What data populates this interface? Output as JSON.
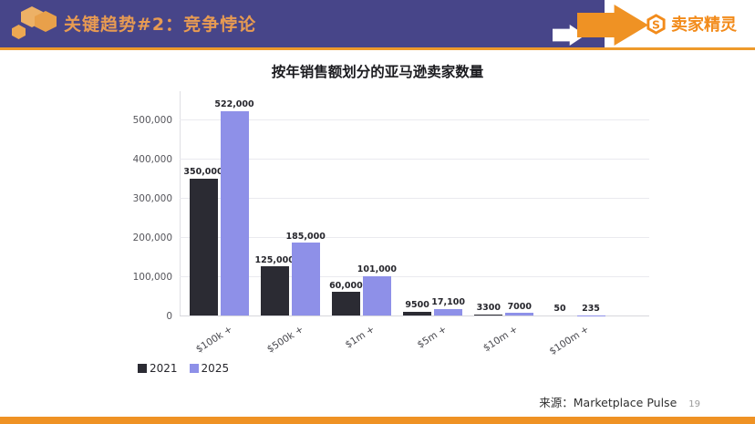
{
  "header": {
    "title": "关键趋势#2：竞争悖论",
    "brand": "卖家精灵",
    "colors": {
      "bar_background": "#474589",
      "accent_orange": "#EE9A2B",
      "title_text": "#E89B52",
      "brand_orange": "#F28B1B"
    }
  },
  "chart_data": {
    "type": "bar",
    "title": "按年销售额划分的亚马逊卖家数量",
    "categories": [
      "$100k +",
      "$500k +",
      "$1m +",
      "$5m +",
      "$10m +",
      "$100m +"
    ],
    "series": [
      {
        "name": "2021",
        "color": "#2B2B33",
        "values": [
          350000,
          125000,
          60000,
          9500,
          3300,
          50
        ],
        "labels": [
          "350,000",
          "125,000",
          "60,000",
          "9500",
          "3300",
          "50"
        ]
      },
      {
        "name": "2025",
        "color": "#8E90E8",
        "values": [
          522000,
          185000,
          101000,
          17100,
          7000,
          235
        ],
        "labels": [
          "522,000",
          "185,000",
          "101,000",
          "17,100",
          "7000",
          "235"
        ]
      }
    ],
    "ylim": [
      0,
      500000
    ],
    "ytick_step": 100000,
    "ytick_labels": [
      "0",
      "100,000",
      "200,000",
      "300,000",
      "400,000",
      "500,000"
    ],
    "grid": true,
    "legend_position": "bottom-left"
  },
  "footer": {
    "source_label": "来源：Marketplace Pulse",
    "page_number": "19"
  }
}
